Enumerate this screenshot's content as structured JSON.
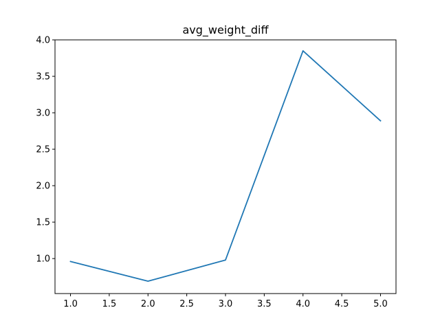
{
  "chart_data": {
    "type": "line",
    "title": "avg_weight_diff",
    "xlabel": "",
    "ylabel": "",
    "x": [
      1,
      2,
      3,
      4,
      5
    ],
    "series": [
      {
        "values": [
          0.96,
          0.69,
          0.98,
          3.85,
          2.89
        ],
        "color": "#1f77b4"
      }
    ],
    "xlim": [
      0.8,
      5.2
    ],
    "ylim": [
      0.52,
      4.0
    ],
    "xticks": [
      1.0,
      1.5,
      2.0,
      2.5,
      3.0,
      3.5,
      4.0,
      4.5,
      5.0
    ],
    "xtick_labels": [
      "1.0",
      "1.5",
      "2.0",
      "2.5",
      "3.0",
      "3.5",
      "4.0",
      "4.5",
      "5.0"
    ],
    "yticks": [
      1.0,
      1.5,
      2.0,
      2.5,
      3.0,
      3.5,
      4.0
    ],
    "ytick_labels": [
      "1.0",
      "1.5",
      "2.0",
      "2.5",
      "3.0",
      "3.5",
      "4.0"
    ],
    "grid": false,
    "legend": "none"
  }
}
